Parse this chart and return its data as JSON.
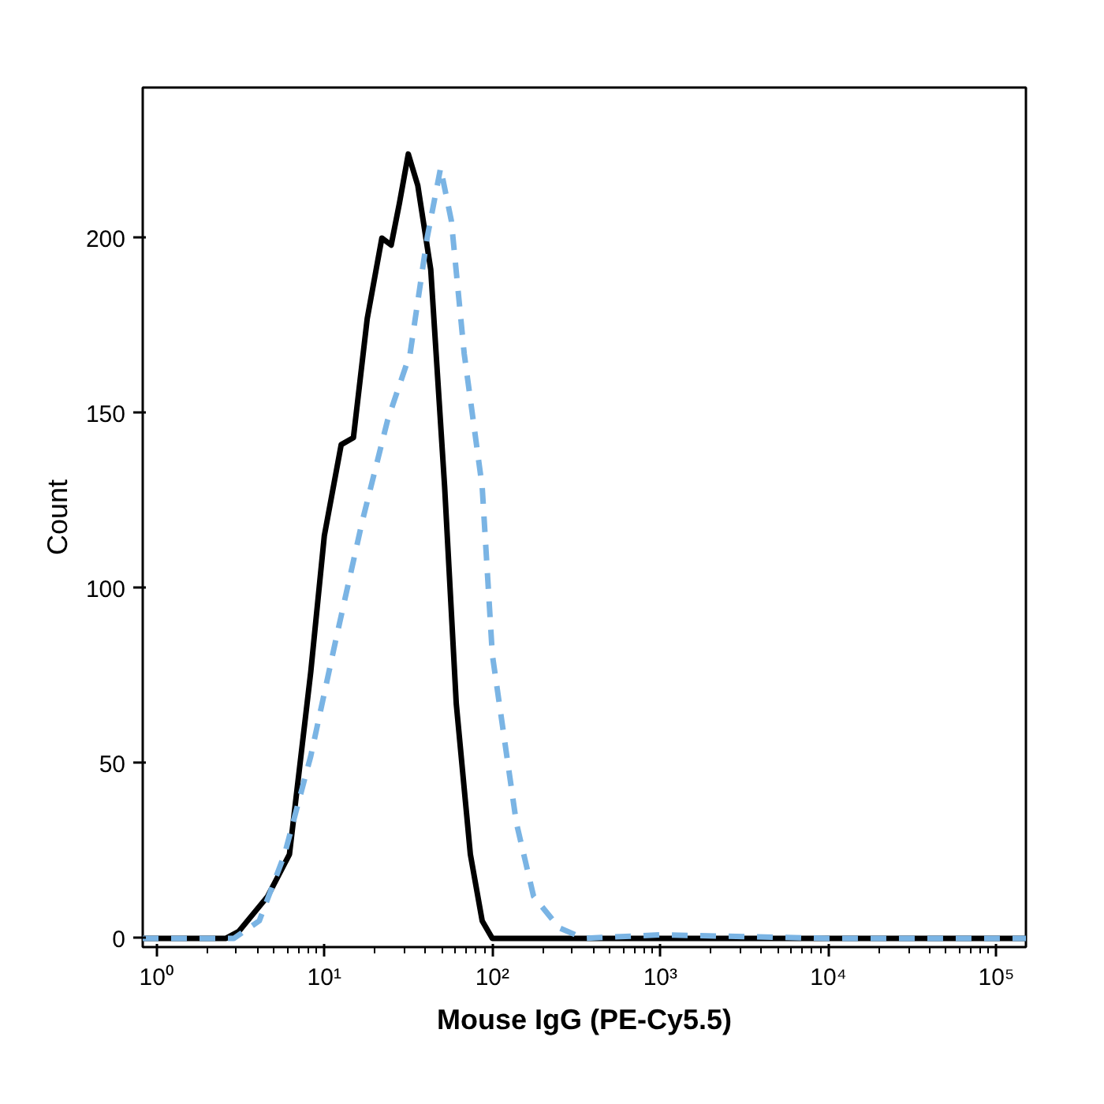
{
  "chart_data": {
    "type": "line",
    "xlabel": "Mouse IgG (PE-Cy5.5)",
    "ylabel": "Count",
    "log": "x",
    "xlim": [
      0.83,
      150000
    ],
    "ylim": [
      -2.5,
      243
    ],
    "xticks": [
      {
        "value": 1,
        "label": "10⁰"
      },
      {
        "value": 10,
        "label": "10¹"
      },
      {
        "value": 100,
        "label": "10²"
      },
      {
        "value": 1000,
        "label": "10³"
      },
      {
        "value": 10000,
        "label": "10⁴"
      },
      {
        "value": 100000,
        "label": "10⁵"
      }
    ],
    "yticks": [
      0,
      50,
      100,
      150,
      200
    ],
    "grid": false,
    "series": [
      {
        "color": "#000000",
        "line_style": "solid",
        "x": [
          0.83,
          2.6,
          3.1,
          4.6,
          6.2,
          8.3,
          10,
          12.6,
          14.9,
          18,
          22,
          25,
          28,
          31.6,
          36,
          43,
          52,
          61,
          74,
          87,
          100,
          1000,
          10000,
          150000
        ],
        "values": [
          0,
          0,
          2,
          12,
          24,
          76,
          115,
          141,
          143,
          177,
          200,
          198,
          210,
          224,
          215,
          191,
          129,
          67,
          24,
          5,
          0,
          0,
          0,
          0
        ]
      },
      {
        "color": "#7ab4e4",
        "line_style": "dashed",
        "x": [
          0.83,
          2.9,
          4.1,
          5.8,
          8.3,
          11.8,
          16.8,
          23.8,
          32.4,
          40.9,
          49.2,
          57,
          68,
          87,
          100,
          139,
          176,
          250,
          350,
          1000,
          10000,
          150000
        ],
        "values": [
          0,
          0,
          5,
          24,
          52,
          86,
          119,
          148,
          167,
          200,
          220,
          205,
          167,
          129,
          81,
          33,
          12,
          3,
          0,
          1,
          0,
          0
        ]
      }
    ]
  }
}
